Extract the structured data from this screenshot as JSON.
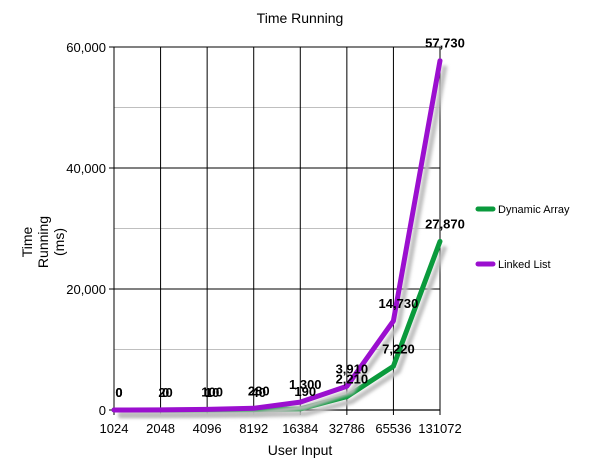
{
  "chart_data": {
    "type": "line",
    "title": "Time Running",
    "xlabel": "User Input",
    "ylabel_lines": [
      "Time",
      "Running",
      "(ms)"
    ],
    "categories": [
      "1024",
      "2048",
      "4096",
      "8192",
      "16384",
      "32786",
      "65536",
      "131072"
    ],
    "ylim": [
      0,
      60000
    ],
    "yticks": [
      0,
      20000,
      40000,
      60000
    ],
    "ytick_labels": [
      "0",
      "20,000",
      "40,000",
      "60,000"
    ],
    "grid": true,
    "legend_position": "right",
    "series": [
      {
        "name": "Dynamic Array",
        "color": "#0a9a3c",
        "values": [
          0,
          0,
          10,
          40,
          190,
          2210,
          7220,
          27870
        ],
        "labels": [
          "0",
          "0",
          "10",
          "40",
          "190",
          "2,210",
          "7,220",
          "27,870"
        ]
      },
      {
        "name": "Linked List",
        "color": "#9b0fcf",
        "values": [
          0,
          20,
          100,
          280,
          1300,
          3910,
          14730,
          57730
        ],
        "labels": [
          "0",
          "20",
          "100",
          "280",
          "1,300",
          "3,910",
          "14,730",
          "57,730"
        ]
      }
    ]
  }
}
